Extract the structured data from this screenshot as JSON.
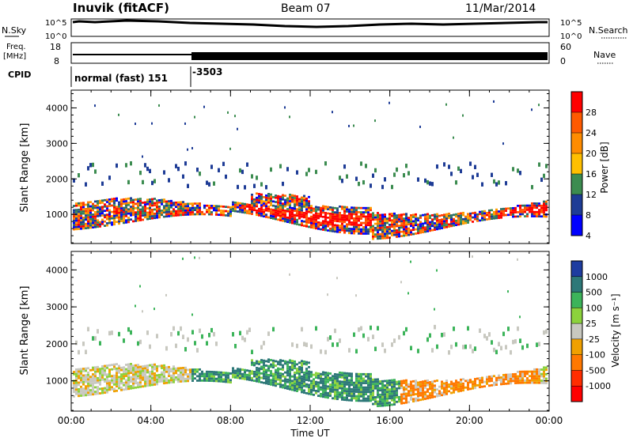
{
  "header": {
    "title": "Inuvik (fitACF)",
    "beam": "Beam 07",
    "date": "11/Mar/2014"
  },
  "top_panels": {
    "nsky_label": "N.Sky",
    "nsky_ticks": [
      "10^5",
      "10^0"
    ],
    "nsearch_label": "N.Search",
    "nsearch_ticks": [
      "10^5",
      "10^0"
    ],
    "freq_label": "Freq.",
    "freq_unit": "[MHz]",
    "freq_ticks": [
      "18",
      "8"
    ],
    "nave_label": "Nave",
    "nave_ticks": [
      "60",
      "0"
    ],
    "cpid_label": "CPID",
    "cpid_entries": [
      {
        "text": "normal (fast) 151",
        "hour": 0
      },
      {
        "text": "-3503",
        "hour": 6.0
      }
    ],
    "freq_change_hour": 6.0
  },
  "power_panel": {
    "ylabel": "Slant Range [km]",
    "colorbar_label": "Power [dB]",
    "colorbar_ticks": [
      "28",
      "24",
      "20",
      "16",
      "12",
      "8",
      "4"
    ],
    "colorbar_colors": [
      "#ff0000",
      "#ff5a00",
      "#ff8c00",
      "#ffbf00",
      "#3c8c50",
      "#1e3c96",
      "#0000ff"
    ]
  },
  "velocity_panel": {
    "ylabel": "Slant Range [km]",
    "colorbar_label": "Velocity [m s⁻¹]",
    "colorbar_ticks": [
      "1000",
      "500",
      "100",
      "25",
      "-25",
      "-100",
      "-500",
      "-1000"
    ],
    "colorbar_colors": [
      "#1e3ca0",
      "#2d7878",
      "#3cb45a",
      "#8cd23c",
      "#c8c8c0",
      "#f0a000",
      "#ff7800",
      "#ff2d00",
      "#ff0000"
    ]
  },
  "chart_data": {
    "type": "heatmap",
    "xlabel": "Time UT",
    "xticks": [
      "00:00",
      "04:00",
      "08:00",
      "12:00",
      "16:00",
      "20:00",
      "00:00"
    ],
    "xlim_hours": [
      0,
      24
    ],
    "ylim_km": [
      180,
      4500
    ],
    "yticks": [
      1000,
      2000,
      3000,
      4000
    ],
    "series": [
      {
        "name": "Power [dB]",
        "range": [
          0,
          30
        ]
      },
      {
        "name": "Velocity [m s⁻¹]",
        "range": [
          -1000,
          1000
        ]
      }
    ]
  }
}
